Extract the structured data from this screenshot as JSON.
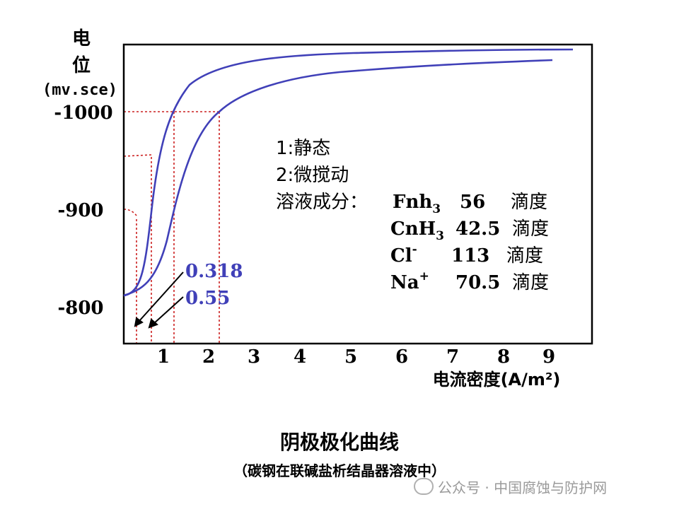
{
  "chart_data": {
    "type": "line",
    "title": "阴极极化曲线",
    "subtitle": "（碳钢在联碱盐析结晶器溶液中）",
    "ylabel_lines": [
      "电",
      "位",
      "(mv.sce)"
    ],
    "xlabel": "电流密度(A/m²)",
    "x_ticks": [
      "1",
      "2",
      "3",
      "4",
      "5",
      "6",
      "7",
      "8",
      "9"
    ],
    "y_ticks": [
      "-800",
      "-900",
      "-1000"
    ],
    "series": [
      {
        "name": "1:静态",
        "color": "#4040b8",
        "points": [
          [
            -0.85,
            -790
          ],
          [
            -0.4,
            -797
          ],
          [
            0,
            -810
          ],
          [
            0.3,
            -840
          ],
          [
            0.6,
            -900
          ],
          [
            0.8,
            -940
          ],
          [
            1.0,
            -980
          ],
          [
            1.3,
            -1015
          ],
          [
            1.7,
            -1040
          ],
          [
            2.3,
            -1058
          ],
          [
            3.5,
            -1072
          ],
          [
            5,
            -1080
          ],
          [
            6.5,
            -1086
          ],
          [
            8,
            -1089
          ],
          [
            9.5,
            -1092
          ]
        ]
      },
      {
        "name": "2:微搅动",
        "color": "#4040b8",
        "points": [
          [
            -0.85,
            -790
          ],
          [
            -0.4,
            -795
          ],
          [
            0,
            -805
          ],
          [
            0.5,
            -822
          ],
          [
            1.0,
            -860
          ],
          [
            1.3,
            -900
          ],
          [
            1.6,
            -940
          ],
          [
            1.9,
            -975
          ],
          [
            2.2,
            -998
          ],
          [
            2.8,
            -1022
          ],
          [
            3.8,
            -1043
          ],
          [
            5,
            -1056
          ],
          [
            6.5,
            -1066
          ],
          [
            8,
            -1073
          ],
          [
            9.1,
            -1077
          ]
        ]
      }
    ],
    "annotations": [
      {
        "text": "0.318",
        "color": "#4040b8"
      },
      {
        "text": "0.55",
        "color": "#4040b8"
      }
    ],
    "legend": {
      "line1": "1:静态",
      "line2": "2:微搅动",
      "composition_label": "溶液成分：",
      "rows": [
        {
          "name": "Fnh",
          "sub": "3",
          "sup": "",
          "value": "56",
          "unit": "滴度"
        },
        {
          "name": "CnH",
          "sub": "3",
          "sup": "",
          "value": "42.5",
          "unit": "滴度"
        },
        {
          "name": "Cl",
          "sub": "",
          "sup": "-",
          "value": "113",
          "unit": "滴度"
        },
        {
          "name": "Na",
          "sub": "",
          "sup": "+",
          "value": "70.5",
          "unit": "滴度"
        }
      ]
    }
  },
  "watermark": "公众号 · 中国腐蚀与防护网"
}
